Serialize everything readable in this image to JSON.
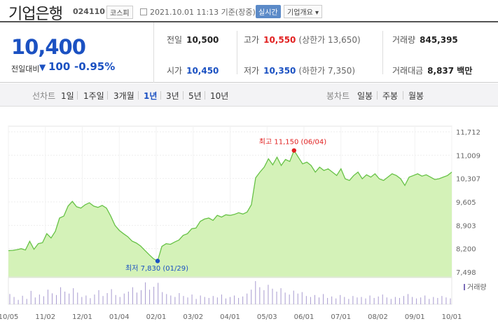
{
  "header": {
    "name": "기업은행",
    "code": "024110",
    "market": "코스피",
    "datetime": "2021.10.01 11:13 기준(장중)",
    "realtime": "실시간",
    "overview": "기업개요 ▾"
  },
  "summary": {
    "price": "10,400",
    "change_label": "전일대비",
    "change_arrow": "▼",
    "change": "100",
    "change_pct": "-0.95%",
    "prev_label": "전일",
    "prev": "10,500",
    "high_label": "고가",
    "high": "10,550",
    "upper_limit": "(상한가 13,650)",
    "volume_label": "거래량",
    "volume": "845,395",
    "open_label": "시가",
    "open": "10,450",
    "low_label": "저가",
    "low": "10,350",
    "lower_limit": "(하한가 7,350)",
    "amount_label": "거래대금",
    "amount": "8,837 백만"
  },
  "tabs": {
    "line_label": "선차트",
    "periods": [
      "1일",
      "1주일",
      "3개월",
      "1년",
      "3년",
      "5년",
      "10년"
    ],
    "active_period": "1년",
    "candle_label": "봉차트",
    "candles": [
      "일봉",
      "주봉",
      "월봉"
    ]
  },
  "colors": {
    "accent": "#1b51c2",
    "up": "#e12020",
    "area_fill": "#c9f0a8",
    "area_line": "#6cc94a",
    "volume_bar": "#9b8dc8"
  },
  "chart_data": {
    "type": "area",
    "x_ticks": [
      "10/05",
      "11/02",
      "12/01",
      "01/04",
      "02/01",
      "03/02",
      "04/01",
      "05/03",
      "06/01",
      "07/01",
      "08/02",
      "09/01",
      "10/01"
    ],
    "y_ticks": [
      "11,712",
      "11,009",
      "10,307",
      "9,605",
      "8,903",
      "8,200",
      "7,498"
    ],
    "ylim": [
      7498,
      11712
    ],
    "grid": true,
    "annotations": {
      "high": "최고 11,150 (06/04)",
      "low": "최저 7,830 (01/29)"
    },
    "high_point": {
      "date": "06/04",
      "value": 11150
    },
    "low_point": {
      "date": "01/29",
      "value": 7830
    },
    "volume_label": "거래량",
    "series": [
      {
        "values": [
          8140,
          8150,
          8170,
          8200,
          8160,
          8420,
          8180,
          8350,
          8380,
          8650,
          8520,
          8720,
          9120,
          9180,
          9480,
          9620,
          9460,
          9420,
          9520,
          9580,
          9480,
          9440,
          9500,
          9420,
          9180,
          8900,
          8750,
          8650,
          8560,
          8430,
          8370,
          8280,
          8150,
          8020,
          7900,
          7830,
          8270,
          8350,
          8330,
          8400,
          8460,
          8600,
          8650,
          8800,
          8820,
          9020,
          9090,
          9120,
          9050,
          9200,
          9150,
          9220,
          9200,
          9230,
          9280,
          9240,
          9300,
          9520,
          10330,
          10500,
          10650,
          10900,
          10720,
          10950,
          10700,
          10880,
          10820,
          11150,
          10950,
          10750,
          10800,
          10700,
          10500,
          10650,
          10550,
          10600,
          10500,
          10400,
          10600,
          10300,
          10250,
          10400,
          10500,
          10300,
          10420,
          10350,
          10450,
          10300,
          10250,
          10350,
          10450,
          10400,
          10300,
          10100,
          10350,
          10400,
          10450,
          10380,
          10420,
          10350,
          10280,
          10300,
          10350,
          10400,
          10500
        ]
      }
    ],
    "volume": [
      42,
      30,
      18,
      35,
      22,
      55,
      28,
      40,
      33,
      60,
      45,
      38,
      70,
      52,
      44,
      66,
      48,
      30,
      36,
      25,
      40,
      58,
      34,
      46,
      62,
      38,
      30,
      44,
      52,
      70,
      48,
      58,
      90,
      60,
      72,
      88,
      50,
      42,
      36,
      30,
      46,
      34,
      28,
      40,
      22,
      36,
      30,
      26,
      34,
      28,
      40,
      24,
      30,
      36,
      26,
      32,
      44,
      60,
      95,
      70,
      58,
      80,
      64,
      52,
      66,
      48,
      40,
      56,
      44,
      50,
      34,
      30,
      38,
      28,
      42,
      26,
      32,
      24,
      38,
      30,
      22,
      34,
      28,
      30,
      24,
      36,
      26,
      32,
      40,
      28,
      22,
      30,
      26,
      34,
      42,
      30,
      24,
      28,
      36,
      22,
      30,
      26,
      34,
      28,
      24
    ]
  }
}
